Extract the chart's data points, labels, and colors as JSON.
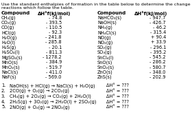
{
  "title_line1": "Use the standard enthalpies of formation in the table below to determine the change in enthalpy for the",
  "title_line2": "reactions which follow the table.",
  "col1_header": "Compound",
  "col2_header": "ΔH°f(kJ/mol)",
  "col3_header": "Compound",
  "col4_header": "ΔH°f(kJ/mol)",
  "left_compounds": [
    "CH₄(g)",
    "CO₂(g)",
    "CO(g)",
    "HCl(g)",
    "H₂O(g)",
    "H₂O(l)",
    "H₂S(g)",
    "H₂SO₄(l)",
    "MgSO₄(s)",
    "MnO(s)",
    "MnO₂(s)",
    "NaCl(s)",
    "NaF(s)"
  ],
  "left_values": [
    "- 74.8",
    "- 393.5",
    "- 110.5",
    "- 92.3",
    "- 241.8",
    "- 285.8",
    "- 20.1",
    "- 811.3",
    "- 1278.2",
    "- 384.9",
    "- 519.7",
    "- 411.0",
    "- 569.0"
  ],
  "right_compounds": [
    "NaHCO₃(s)",
    "NaOH(s)",
    "NH₃(g)",
    "NH₄Cl(s)",
    "NO(g)",
    "NO₂(g)",
    "SO₂(g)",
    "SO₃(g)",
    "SnCl₄(l)",
    "SnO(s)",
    "SnO₂(s)",
    "ZnO(s)",
    "ZnS(s)"
  ],
  "right_values": [
    "- 947.7",
    "- 426.7",
    "- 46.2",
    "- 315.4",
    "+ 90.4",
    "+ 33.9",
    "- 296.1",
    "- 395.2",
    "- 545.2",
    "- 286.2",
    "- 580.7",
    "- 348.0",
    "- 202.9"
  ],
  "reactions": [
    [
      "1.",
      "NaOH(s) + HCl(g) → NaCl(s) + H₂O(g)",
      "ΔH° = ???"
    ],
    [
      "2.",
      "2CO(g) + O₂(g) → 2CO₂(g)",
      "ΔH° = ???"
    ],
    [
      "3.",
      "CH₄(g) + 2O₂(g) → CO₂(g) + 2H₂O(l)",
      "ΔH° = ???"
    ],
    [
      "4.",
      "2H₂S(g) + 3O₂(g) → 2H₂O(l) + 2SO₂(g)",
      "ΔH° = ???"
    ],
    [
      "5.",
      "2NO(g) + O₂(g) → 2NO₂(g)",
      "ΔH° = ???"
    ]
  ],
  "bg_color": "#ffffff",
  "text_color": "#000000",
  "font_size": 4.8,
  "title_font_size": 4.6,
  "header_font_size": 5.0
}
